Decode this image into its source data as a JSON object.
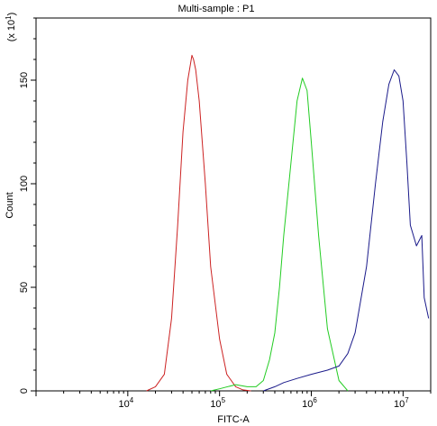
{
  "chart_data": {
    "type": "line",
    "title": "Multi-sample : P1",
    "xlabel": "FITC-A",
    "ylabel": "Count",
    "y_multiplier_label": "(x 10",
    "y_multiplier_exp": "1",
    "y_multiplier_close": ")",
    "x_scale": "log",
    "xlim": [
      1000,
      20000000
    ],
    "ylim": [
      0,
      180
    ],
    "x_ticks": [
      {
        "value": 10000,
        "base": "10",
        "exp": "4"
      },
      {
        "value": 100000,
        "base": "10",
        "exp": "5"
      },
      {
        "value": 1000000,
        "base": "10",
        "exp": "6"
      },
      {
        "value": 10000000,
        "base": "10",
        "exp": "7"
      }
    ],
    "y_ticks": [
      {
        "value": 0,
        "label": "0"
      },
      {
        "value": 50,
        "label": "50"
      },
      {
        "value": 100,
        "label": "100"
      },
      {
        "value": 150,
        "label": "150"
      }
    ],
    "grid": false,
    "series": [
      {
        "color": "#cc2222",
        "x": [
          16000,
          20000,
          25000,
          30000,
          35000,
          40000,
          45000,
          50000,
          52000,
          55000,
          60000,
          70000,
          80000,
          100000,
          120000,
          150000,
          180000,
          220000
        ],
        "y": [
          0,
          2,
          8,
          35,
          80,
          125,
          150,
          162,
          160,
          155,
          140,
          100,
          60,
          25,
          8,
          2,
          0.5,
          0
        ]
      },
      {
        "color": "#22cc22",
        "x": [
          80000,
          100000,
          150000,
          200000,
          250000,
          300000,
          350000,
          400000,
          450000,
          500000,
          600000,
          700000,
          800000,
          900000,
          1000000,
          1200000,
          1500000,
          2000000,
          2500000
        ],
        "y": [
          0,
          1,
          3,
          2,
          2,
          5,
          15,
          28,
          50,
          75,
          110,
          140,
          151,
          145,
          120,
          75,
          30,
          5,
          0
        ]
      },
      {
        "color": "#1a1a8a",
        "x": [
          300000,
          400000,
          500000,
          700000,
          1000000,
          1500000,
          2000000,
          2500000,
          3000000,
          4000000,
          5000000,
          6000000,
          7000000,
          8000000,
          9000000,
          10000000,
          11000000,
          12000000,
          14000000,
          16000000,
          17000000,
          19000000
        ],
        "y": [
          0,
          2,
          4,
          6,
          8,
          10,
          12,
          18,
          28,
          60,
          100,
          130,
          148,
          155,
          152,
          140,
          110,
          80,
          70,
          75,
          45,
          35
        ]
      }
    ]
  }
}
